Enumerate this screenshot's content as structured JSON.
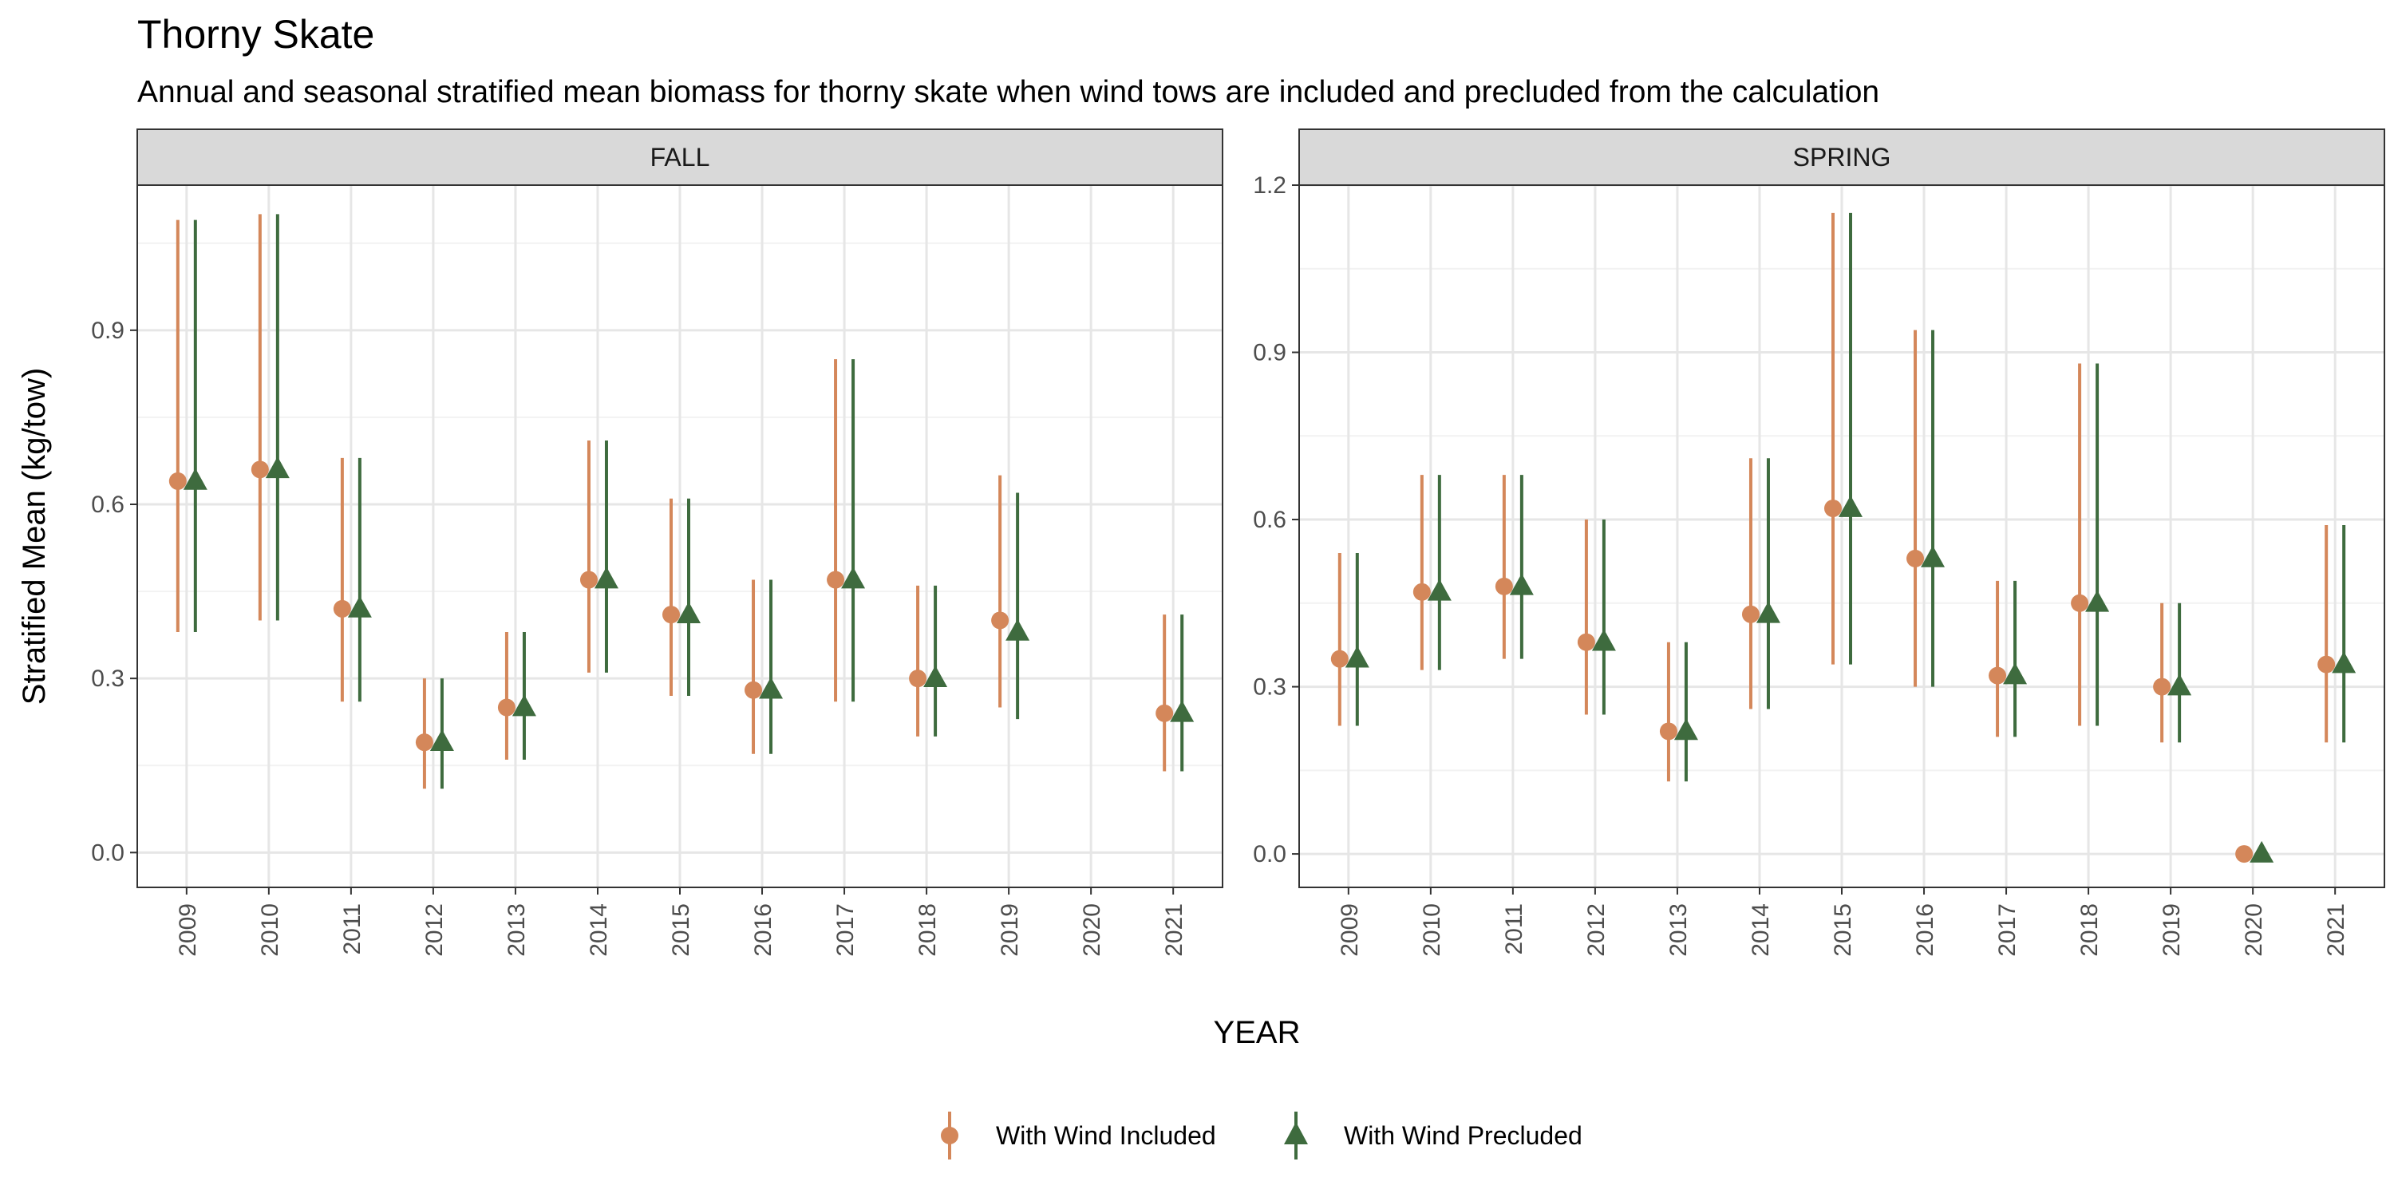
{
  "chart_data": {
    "type": "scatter",
    "title": "Thorny Skate",
    "subtitle": "Annual and seasonal stratified mean biomass for thorny skate when wind tows are included and precluded from the calculation",
    "xlabel": "YEAR",
    "ylabel": "Stratified Mean (kg/tow)",
    "grid": true,
    "legend_position": "bottom",
    "colors": {
      "With Wind Included": "#d4875a",
      "With Wind Precluded": "#3e6b3e"
    },
    "categories": [
      "2009",
      "2010",
      "2011",
      "2012",
      "2013",
      "2014",
      "2015",
      "2016",
      "2017",
      "2018",
      "2019",
      "2020",
      "2021"
    ],
    "panels": [
      {
        "name": "FALL",
        "ylim": [
          -0.06,
          1.15
        ],
        "yticks": [
          0.0,
          0.3,
          0.6,
          0.9
        ],
        "series": [
          {
            "name": "With Wind Included",
            "marker": "circle",
            "values": [
              0.64,
              0.66,
              0.42,
              0.19,
              0.25,
              0.47,
              0.41,
              0.28,
              0.47,
              0.3,
              0.4,
              null,
              0.24
            ],
            "lower": [
              0.38,
              0.4,
              0.26,
              0.11,
              0.16,
              0.31,
              0.27,
              0.17,
              0.26,
              0.2,
              0.25,
              null,
              0.14
            ],
            "upper": [
              1.09,
              1.1,
              0.68,
              0.3,
              0.38,
              0.71,
              0.61,
              0.47,
              0.85,
              0.46,
              0.65,
              null,
              0.41
            ]
          },
          {
            "name": "With Wind Precluded",
            "marker": "triangle",
            "values": [
              0.64,
              0.66,
              0.42,
              0.19,
              0.25,
              0.47,
              0.41,
              0.28,
              0.47,
              0.3,
              0.38,
              null,
              0.24
            ],
            "lower": [
              0.38,
              0.4,
              0.26,
              0.11,
              0.16,
              0.31,
              0.27,
              0.17,
              0.26,
              0.2,
              0.23,
              null,
              0.14
            ],
            "upper": [
              1.09,
              1.1,
              0.68,
              0.3,
              0.38,
              0.71,
              0.61,
              0.47,
              0.85,
              0.46,
              0.62,
              null,
              0.41
            ]
          }
        ]
      },
      {
        "name": "SPRING",
        "ylim": [
          -0.06,
          1.2
        ],
        "yticks": [
          0.0,
          0.3,
          0.6,
          0.9,
          1.2
        ],
        "series": [
          {
            "name": "With Wind Included",
            "marker": "circle",
            "values": [
              0.35,
              0.47,
              0.48,
              0.38,
              0.22,
              0.43,
              0.62,
              0.53,
              0.32,
              0.45,
              0.3,
              0.0,
              0.34
            ],
            "lower": [
              0.23,
              0.33,
              0.35,
              0.25,
              0.13,
              0.26,
              0.34,
              0.3,
              0.21,
              0.23,
              0.2,
              0.0,
              0.2
            ],
            "upper": [
              0.54,
              0.68,
              0.68,
              0.6,
              0.38,
              0.71,
              1.15,
              0.94,
              0.49,
              0.88,
              0.45,
              0.0,
              0.59
            ]
          },
          {
            "name": "With Wind Precluded",
            "marker": "triangle",
            "values": [
              0.35,
              0.47,
              0.48,
              0.38,
              0.22,
              0.43,
              0.62,
              0.53,
              0.32,
              0.45,
              0.3,
              0.0,
              0.34
            ],
            "lower": [
              0.23,
              0.33,
              0.35,
              0.25,
              0.13,
              0.26,
              0.34,
              0.3,
              0.21,
              0.23,
              0.2,
              0.0,
              0.2
            ],
            "upper": [
              0.54,
              0.68,
              0.68,
              0.6,
              0.38,
              0.71,
              1.15,
              0.94,
              0.49,
              0.88,
              0.45,
              0.0,
              0.59
            ]
          }
        ]
      }
    ]
  }
}
